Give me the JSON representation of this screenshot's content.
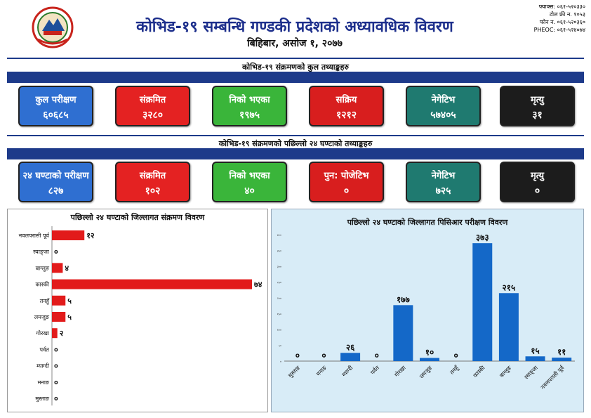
{
  "header": {
    "title": "कोभिड-१९ सम्बन्धि गण्डकी प्रदेशको अध्यावधिक विवरण",
    "date": "बिहिबार, असोज १, २०७७",
    "contact": [
      "फ्याक्स: ०६१-५२०३३०",
      "टोल फ्री न. १०५३",
      "फोन न. ०६१-५२०३६०",
      "PHEOC: ०६१-५२४०७४"
    ]
  },
  "totals": {
    "heading": "कोभिड-१९ संक्रमणको कुल तथ्याङ्कहरु",
    "cards": [
      {
        "label": "कुल परीक्षण",
        "value": "६०६८५",
        "color": "#2f6fd1"
      },
      {
        "label": "संक्रमित",
        "value": "३२८०",
        "color": "#e42222"
      },
      {
        "label": "निको भएका",
        "value": "१९७५",
        "color": "#3ab53a"
      },
      {
        "label": "सक्रिय",
        "value": "१२१२",
        "color": "#d81e1e"
      },
      {
        "label": "नेगेटिभ",
        "value": "५७४०५",
        "color": "#1f7a70"
      },
      {
        "label": "मृत्यु",
        "value": "३१",
        "color": "#1c1c1c"
      }
    ]
  },
  "last24": {
    "heading": "कोभिड-१९ संक्रमणको पछिल्लो २४ घण्टाको तथ्याङ्कहरु",
    "cards": [
      {
        "label": "२४ घण्टाको परीक्षण",
        "value": "८२७",
        "color": "#2f6fd1"
      },
      {
        "label": "संक्रमित",
        "value": "१०२",
        "color": "#e42222"
      },
      {
        "label": "निको भएका",
        "value": "४०",
        "color": "#3ab53a"
      },
      {
        "label": "पुन: पोजेटिभ",
        "value": "०",
        "color": "#d81e1e"
      },
      {
        "label": "नेगेटिभ",
        "value": "७२५",
        "color": "#1f7a70"
      },
      {
        "label": "मृत्यु",
        "value": "०",
        "color": "#1c1c1c"
      }
    ]
  },
  "chart_data": [
    {
      "type": "bar",
      "orientation": "horizontal",
      "title": "पछिल्लो २४ घण्टाको जिल्लागत संक्रमण विवरण",
      "categories": [
        "नवलपरासी पूर्व",
        "स्याङ्जा",
        "बाग्लुङ",
        "कास्की",
        "तनहुँ",
        "लमजुङ",
        "गोरखा",
        "पर्वत",
        "म्याग्दी",
        "मनाङ",
        "मुस्ताङ"
      ],
      "values": [
        12,
        0,
        4,
        74,
        5,
        5,
        2,
        0,
        0,
        0,
        0
      ],
      "value_labels": [
        "१२",
        "०",
        "४",
        "७४",
        "५",
        "५",
        "२",
        "०",
        "०",
        "०",
        "०"
      ],
      "color": "#e21b1b"
    },
    {
      "type": "bar",
      "orientation": "vertical",
      "title": "पछिल्लो २४ घण्टाको जिल्लागत पिसिआर परीक्षण विवरण",
      "categories": [
        "मुस्ताङ",
        "मनाङ",
        "म्याग्दी",
        "पर्वत",
        "गोरखा",
        "लमजुङ",
        "तनहुँ",
        "कास्की",
        "बाग्लुङ",
        "स्याङ्जा",
        "नवलपरासी पूर्व"
      ],
      "values": [
        0,
        0,
        26,
        0,
        177,
        10,
        0,
        373,
        215,
        15,
        11
      ],
      "value_labels": [
        "०",
        "०",
        "२६",
        "०",
        "१७७",
        "१०",
        "०",
        "३७३",
        "२१५",
        "१५",
        "११"
      ],
      "yticks": [
        "०",
        "५०",
        "१००",
        "१५०",
        "२००",
        "२५०",
        "३००",
        "३५०",
        "४००"
      ],
      "ylim": [
        0,
        400
      ],
      "color": "#1468c8"
    }
  ]
}
